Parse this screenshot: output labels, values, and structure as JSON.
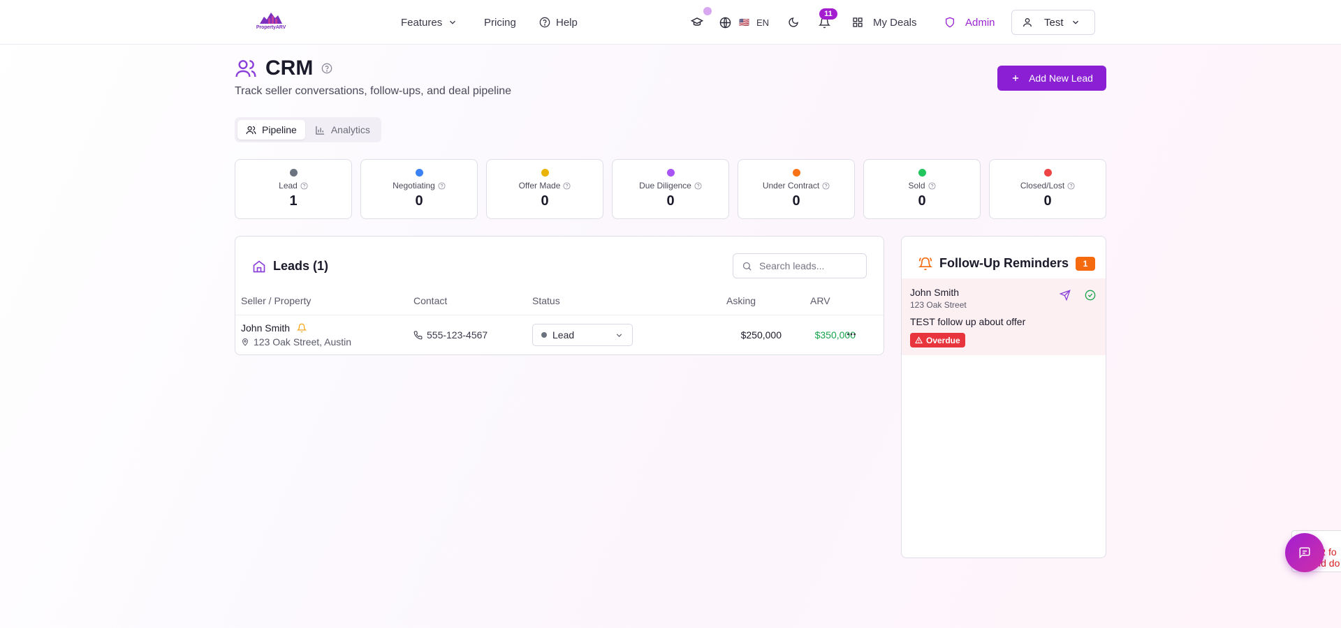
{
  "brand": {
    "logo_text": "PropertyARV"
  },
  "nav": {
    "features": "Features",
    "pricing": "Pricing",
    "help": "Help",
    "lang_flag": "🇺🇸",
    "lang": "EN",
    "notifications_count": "11",
    "my_deals": "My Deals",
    "admin": "Admin",
    "user": "Test"
  },
  "header": {
    "title": "CRM",
    "subtitle": "Track seller conversations, follow-ups, and deal pipeline",
    "add_button": "Add New Lead"
  },
  "tabs": [
    {
      "label": "Pipeline",
      "active": true
    },
    {
      "label": "Analytics",
      "active": false
    }
  ],
  "stages": [
    {
      "label": "Lead",
      "count": "1",
      "color": "#6b7280"
    },
    {
      "label": "Negotiating",
      "count": "0",
      "color": "#3b82f6"
    },
    {
      "label": "Offer Made",
      "count": "0",
      "color": "#eab308"
    },
    {
      "label": "Due Diligence",
      "count": "0",
      "color": "#a855f7"
    },
    {
      "label": "Under Contract",
      "count": "0",
      "color": "#f97316"
    },
    {
      "label": "Sold",
      "count": "0",
      "color": "#22c55e"
    },
    {
      "label": "Closed/Lost",
      "count": "0",
      "color": "#ef4444"
    }
  ],
  "leads": {
    "title": "Leads (1)",
    "search_placeholder": "Search leads...",
    "columns": {
      "seller": "Seller / Property",
      "contact": "Contact",
      "status": "Status",
      "asking": "Asking",
      "arv": "ARV"
    },
    "rows": [
      {
        "name": "John Smith",
        "address": "123 Oak Street, Austin",
        "phone": "555-123-4567",
        "status": "Lead",
        "asking": "$250,000",
        "arv": "$350,000"
      }
    ]
  },
  "reminders": {
    "title": "Follow-Up Reminders",
    "count": "1",
    "items": [
      {
        "name": "John Smith",
        "address": "123 Oak Street",
        "note": "TEST follow up about offer",
        "badge": "Overdue"
      }
    ]
  },
  "floating": {
    "side_tab_line1": "R fo",
    "side_tab_line2": "ld do"
  },
  "colors": {
    "brand_purple": "#8a1fd3",
    "overdue_red": "#e8343c",
    "reminder_orange": "#f56a0f",
    "arv_green": "#16a34a"
  }
}
